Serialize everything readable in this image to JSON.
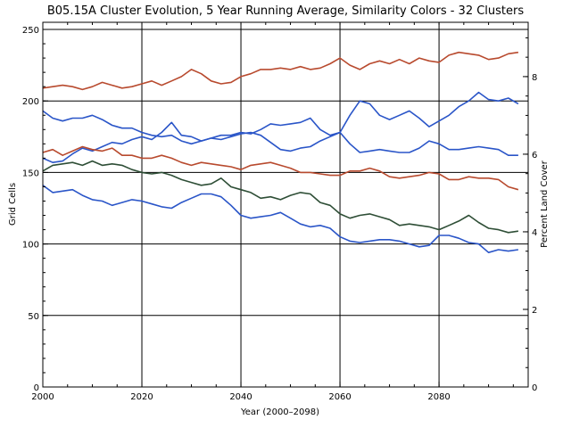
{
  "chart_data": {
    "type": "line",
    "title": "B05.15A Cluster Evolution, 5 Year Running Average, Similarity Colors - 32 Clusters",
    "xlabel": "Year (2000–2098)",
    "ylabel": "Grid Cells",
    "y2label": "Percent Land Cover",
    "xlim": [
      2000,
      2098
    ],
    "ylim": [
      0,
      255
    ],
    "y2lim": [
      0,
      9.4
    ],
    "x_ticks": [
      "2000",
      "2020",
      "2040",
      "2060",
      "2080"
    ],
    "y_ticks": [
      "0",
      "50",
      "100",
      "150",
      "200",
      "250"
    ],
    "y2_ticks": [
      "0",
      "2",
      "4",
      "6",
      "8"
    ],
    "grid": true,
    "series": [
      {
        "color": "#b84a2e",
        "points": [
          [
            2000,
            209
          ],
          [
            2002,
            210
          ],
          [
            2004,
            211
          ],
          [
            2006,
            210
          ],
          [
            2008,
            208
          ],
          [
            2010,
            210
          ],
          [
            2012,
            213
          ],
          [
            2014,
            211
          ],
          [
            2016,
            209
          ],
          [
            2018,
            210
          ],
          [
            2020,
            212
          ],
          [
            2022,
            214
          ],
          [
            2024,
            211
          ],
          [
            2026,
            214
          ],
          [
            2028,
            217
          ],
          [
            2030,
            222
          ],
          [
            2032,
            219
          ],
          [
            2034,
            214
          ],
          [
            2036,
            212
          ],
          [
            2038,
            213
          ],
          [
            2040,
            217
          ],
          [
            2042,
            219
          ],
          [
            2044,
            222
          ],
          [
            2046,
            222
          ],
          [
            2048,
            223
          ],
          [
            2050,
            222
          ],
          [
            2052,
            224
          ],
          [
            2054,
            222
          ],
          [
            2056,
            223
          ],
          [
            2058,
            226
          ],
          [
            2060,
            230
          ],
          [
            2062,
            225
          ],
          [
            2064,
            222
          ],
          [
            2066,
            226
          ],
          [
            2068,
            228
          ],
          [
            2070,
            226
          ],
          [
            2072,
            229
          ],
          [
            2074,
            226
          ],
          [
            2076,
            230
          ],
          [
            2078,
            228
          ],
          [
            2080,
            227
          ],
          [
            2082,
            232
          ],
          [
            2084,
            234
          ],
          [
            2086,
            233
          ],
          [
            2088,
            232
          ],
          [
            2090,
            229
          ],
          [
            2092,
            230
          ],
          [
            2094,
            233
          ],
          [
            2096,
            234
          ]
        ]
      },
      {
        "color": "#2a55c8",
        "points": [
          [
            2000,
            193
          ],
          [
            2002,
            188
          ],
          [
            2004,
            186
          ],
          [
            2006,
            188
          ],
          [
            2008,
            188
          ],
          [
            2010,
            190
          ],
          [
            2012,
            187
          ],
          [
            2014,
            183
          ],
          [
            2016,
            181
          ],
          [
            2018,
            181
          ],
          [
            2020,
            178
          ],
          [
            2022,
            176
          ],
          [
            2024,
            175
          ],
          [
            2026,
            176
          ],
          [
            2028,
            172
          ],
          [
            2030,
            170
          ],
          [
            2032,
            172
          ],
          [
            2034,
            174
          ],
          [
            2036,
            176
          ],
          [
            2038,
            176
          ],
          [
            2040,
            178
          ],
          [
            2042,
            177
          ],
          [
            2044,
            180
          ],
          [
            2046,
            184
          ],
          [
            2048,
            183
          ],
          [
            2050,
            184
          ],
          [
            2052,
            185
          ],
          [
            2054,
            188
          ],
          [
            2056,
            180
          ],
          [
            2058,
            176
          ],
          [
            2060,
            178
          ],
          [
            2062,
            190
          ],
          [
            2064,
            200
          ],
          [
            2066,
            198
          ],
          [
            2068,
            190
          ],
          [
            2070,
            187
          ],
          [
            2072,
            190
          ],
          [
            2074,
            193
          ],
          [
            2076,
            188
          ],
          [
            2078,
            182
          ],
          [
            2080,
            186
          ],
          [
            2082,
            190
          ],
          [
            2084,
            196
          ],
          [
            2086,
            200
          ],
          [
            2088,
            206
          ],
          [
            2090,
            201
          ],
          [
            2092,
            200
          ],
          [
            2094,
            202
          ],
          [
            2096,
            198
          ]
        ]
      },
      {
        "color": "#2a55c8",
        "points": [
          [
            2000,
            160
          ],
          [
            2002,
            157
          ],
          [
            2004,
            158
          ],
          [
            2006,
            163
          ],
          [
            2008,
            167
          ],
          [
            2010,
            165
          ],
          [
            2012,
            168
          ],
          [
            2014,
            171
          ],
          [
            2016,
            170
          ],
          [
            2018,
            173
          ],
          [
            2020,
            175
          ],
          [
            2022,
            173
          ],
          [
            2024,
            178
          ],
          [
            2026,
            185
          ],
          [
            2028,
            176
          ],
          [
            2030,
            175
          ],
          [
            2032,
            172
          ],
          [
            2034,
            174
          ],
          [
            2036,
            173
          ],
          [
            2038,
            175
          ],
          [
            2040,
            177
          ],
          [
            2042,
            178
          ],
          [
            2044,
            176
          ],
          [
            2046,
            171
          ],
          [
            2048,
            166
          ],
          [
            2050,
            165
          ],
          [
            2052,
            167
          ],
          [
            2054,
            168
          ],
          [
            2056,
            172
          ],
          [
            2058,
            175
          ],
          [
            2060,
            178
          ],
          [
            2062,
            170
          ],
          [
            2064,
            164
          ],
          [
            2066,
            165
          ],
          [
            2068,
            166
          ],
          [
            2070,
            165
          ],
          [
            2072,
            164
          ],
          [
            2074,
            164
          ],
          [
            2076,
            167
          ],
          [
            2078,
            172
          ],
          [
            2080,
            170
          ],
          [
            2082,
            166
          ],
          [
            2084,
            166
          ],
          [
            2086,
            167
          ],
          [
            2088,
            168
          ],
          [
            2090,
            167
          ],
          [
            2092,
            166
          ],
          [
            2094,
            162
          ],
          [
            2096,
            162
          ]
        ]
      },
      {
        "color": "#b84a2e",
        "points": [
          [
            2000,
            164
          ],
          [
            2002,
            166
          ],
          [
            2004,
            162
          ],
          [
            2006,
            165
          ],
          [
            2008,
            168
          ],
          [
            2010,
            166
          ],
          [
            2012,
            165
          ],
          [
            2014,
            167
          ],
          [
            2016,
            162
          ],
          [
            2018,
            162
          ],
          [
            2020,
            160
          ],
          [
            2022,
            160
          ],
          [
            2024,
            162
          ],
          [
            2026,
            160
          ],
          [
            2028,
            157
          ],
          [
            2030,
            155
          ],
          [
            2032,
            157
          ],
          [
            2034,
            156
          ],
          [
            2036,
            155
          ],
          [
            2038,
            154
          ],
          [
            2040,
            152
          ],
          [
            2042,
            155
          ],
          [
            2044,
            156
          ],
          [
            2046,
            157
          ],
          [
            2048,
            155
          ],
          [
            2050,
            153
          ],
          [
            2052,
            150
          ],
          [
            2054,
            150
          ],
          [
            2056,
            149
          ],
          [
            2058,
            148
          ],
          [
            2060,
            148
          ],
          [
            2062,
            151
          ],
          [
            2064,
            151
          ],
          [
            2066,
            153
          ],
          [
            2068,
            151
          ],
          [
            2070,
            147
          ],
          [
            2072,
            146
          ],
          [
            2074,
            147
          ],
          [
            2076,
            148
          ],
          [
            2078,
            150
          ],
          [
            2080,
            149
          ],
          [
            2082,
            145
          ],
          [
            2084,
            145
          ],
          [
            2086,
            147
          ],
          [
            2088,
            146
          ],
          [
            2090,
            146
          ],
          [
            2092,
            145
          ],
          [
            2094,
            140
          ],
          [
            2096,
            138
          ]
        ]
      },
      {
        "color": "#2e4e36",
        "points": [
          [
            2000,
            151
          ],
          [
            2002,
            155
          ],
          [
            2004,
            156
          ],
          [
            2006,
            157
          ],
          [
            2008,
            155
          ],
          [
            2010,
            158
          ],
          [
            2012,
            155
          ],
          [
            2014,
            156
          ],
          [
            2016,
            155
          ],
          [
            2018,
            152
          ],
          [
            2020,
            150
          ],
          [
            2022,
            149
          ],
          [
            2024,
            150
          ],
          [
            2026,
            148
          ],
          [
            2028,
            145
          ],
          [
            2030,
            143
          ],
          [
            2032,
            141
          ],
          [
            2034,
            142
          ],
          [
            2036,
            146
          ],
          [
            2038,
            140
          ],
          [
            2040,
            138
          ],
          [
            2042,
            136
          ],
          [
            2044,
            132
          ],
          [
            2046,
            133
          ],
          [
            2048,
            131
          ],
          [
            2050,
            134
          ],
          [
            2052,
            136
          ],
          [
            2054,
            135
          ],
          [
            2056,
            129
          ],
          [
            2058,
            127
          ],
          [
            2060,
            121
          ],
          [
            2062,
            118
          ],
          [
            2064,
            120
          ],
          [
            2066,
            121
          ],
          [
            2068,
            119
          ],
          [
            2070,
            117
          ],
          [
            2072,
            113
          ],
          [
            2074,
            114
          ],
          [
            2076,
            113
          ],
          [
            2078,
            112
          ],
          [
            2080,
            110
          ],
          [
            2082,
            113
          ],
          [
            2084,
            116
          ],
          [
            2086,
            120
          ],
          [
            2088,
            115
          ],
          [
            2090,
            111
          ],
          [
            2092,
            110
          ],
          [
            2094,
            108
          ],
          [
            2096,
            109
          ]
        ]
      },
      {
        "color": "#2a55c8",
        "points": [
          [
            2000,
            141
          ],
          [
            2002,
            136
          ],
          [
            2004,
            137
          ],
          [
            2006,
            138
          ],
          [
            2008,
            134
          ],
          [
            2010,
            131
          ],
          [
            2012,
            130
          ],
          [
            2014,
            127
          ],
          [
            2016,
            129
          ],
          [
            2018,
            131
          ],
          [
            2020,
            130
          ],
          [
            2022,
            128
          ],
          [
            2024,
            126
          ],
          [
            2026,
            125
          ],
          [
            2028,
            129
          ],
          [
            2030,
            132
          ],
          [
            2032,
            135
          ],
          [
            2034,
            135
          ],
          [
            2036,
            133
          ],
          [
            2038,
            127
          ],
          [
            2040,
            120
          ],
          [
            2042,
            118
          ],
          [
            2044,
            119
          ],
          [
            2046,
            120
          ],
          [
            2048,
            122
          ],
          [
            2050,
            118
          ],
          [
            2052,
            114
          ],
          [
            2054,
            112
          ],
          [
            2056,
            113
          ],
          [
            2058,
            111
          ],
          [
            2060,
            105
          ],
          [
            2062,
            102
          ],
          [
            2064,
            101
          ],
          [
            2066,
            102
          ],
          [
            2068,
            103
          ],
          [
            2070,
            103
          ],
          [
            2072,
            102
          ],
          [
            2074,
            100
          ],
          [
            2076,
            98
          ],
          [
            2078,
            99
          ],
          [
            2080,
            106
          ],
          [
            2082,
            106
          ],
          [
            2084,
            104
          ],
          [
            2086,
            101
          ],
          [
            2088,
            100
          ],
          [
            2090,
            94
          ],
          [
            2092,
            96
          ],
          [
            2094,
            95
          ],
          [
            2096,
            96
          ]
        ]
      }
    ]
  }
}
